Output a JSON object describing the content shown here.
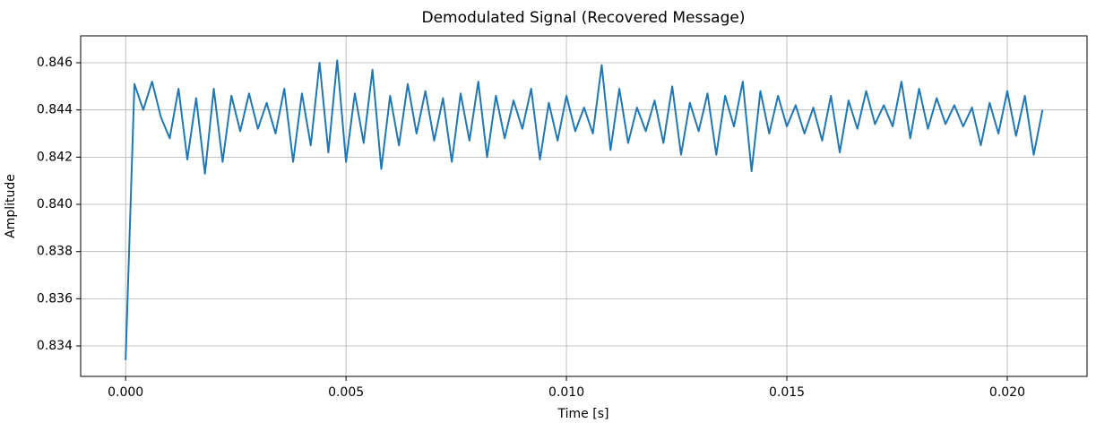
{
  "chart_data": {
    "type": "line",
    "title": "Demodulated Signal (Recovered Message)",
    "x_label": "Time [s]",
    "y_label": "Amplitude",
    "color": "#1f77b4",
    "grid": true,
    "xlim": [
      -0.00102,
      0.02181
    ],
    "ylim": [
      0.83271,
      0.84714
    ],
    "xticks": [
      {
        "value": 0,
        "label": "0.000"
      },
      {
        "value": 0.005,
        "label": "0.005"
      },
      {
        "value": 0.01,
        "label": "0.010"
      },
      {
        "value": 0.015,
        "label": "0.015"
      },
      {
        "value": 0.02,
        "label": "0.020"
      }
    ],
    "yticks": [
      0.834,
      0.836,
      0.838,
      {
        "value": 0.84,
        "label": "0.840"
      },
      0.842,
      0.844,
      0.846
    ],
    "x": [
      0,
      0.0002,
      0.0004,
      0.0006,
      0.0008,
      0.001,
      0.0012,
      0.0014,
      0.0016,
      0.0018,
      0.002,
      0.0022,
      0.0024,
      0.0026,
      0.0028,
      0.003,
      0.0032,
      0.0034,
      0.0036,
      0.0038,
      0.004,
      0.0042,
      0.0044,
      0.0046,
      0.0048,
      0.005,
      0.0052,
      0.0054,
      0.0056,
      0.0058,
      0.006,
      0.0062,
      0.0064,
      0.0066,
      0.0068,
      0.007,
      0.0072,
      0.0074,
      0.0076,
      0.0078,
      0.008,
      0.0082,
      0.0084,
      0.0086,
      0.0088,
      0.009,
      0.0092,
      0.0094,
      0.0096,
      0.0098,
      0.01,
      0.0102,
      0.0104,
      0.0106,
      0.0108,
      0.011,
      0.0112,
      0.0114,
      0.0116,
      0.0118,
      0.012,
      0.0122,
      0.0124,
      0.0126,
      0.0128,
      0.013,
      0.0132,
      0.0134,
      0.0136,
      0.0138,
      0.014,
      0.0142,
      0.0144,
      0.0146,
      0.0148,
      0.015,
      0.0152,
      0.0154,
      0.0156,
      0.0158,
      0.016,
      0.0162,
      0.0164,
      0.0166,
      0.0168,
      0.017,
      0.0172,
      0.0174,
      0.0176,
      0.0178,
      0.018,
      0.0182,
      0.0184,
      0.0186,
      0.0188,
      0.019,
      0.0192,
      0.0194,
      0.0196,
      0.0198,
      0.02,
      0.0202,
      0.0204,
      0.0206,
      0.0208
    ],
    "values": [
      0.8334,
      0.8451,
      0.844,
      0.8452,
      0.8437,
      0.8428,
      0.8449,
      0.8419,
      0.8445,
      0.8413,
      0.8449,
      0.8418,
      0.8446,
      0.8431,
      0.8447,
      0.8432,
      0.8443,
      0.843,
      0.8449,
      0.8418,
      0.8447,
      0.8425,
      0.846,
      0.8422,
      0.8461,
      0.8418,
      0.8447,
      0.8426,
      0.8457,
      0.8415,
      0.8446,
      0.8425,
      0.8451,
      0.843,
      0.8448,
      0.8427,
      0.8445,
      0.8418,
      0.8447,
      0.8427,
      0.8452,
      0.842,
      0.8446,
      0.8428,
      0.8444,
      0.8432,
      0.8449,
      0.8419,
      0.8443,
      0.8427,
      0.8446,
      0.8431,
      0.8441,
      0.843,
      0.8459,
      0.8423,
      0.8449,
      0.8426,
      0.8441,
      0.8431,
      0.8444,
      0.8426,
      0.845,
      0.8421,
      0.8443,
      0.8431,
      0.8447,
      0.8421,
      0.8446,
      0.8433,
      0.8452,
      0.8414,
      0.8448,
      0.843,
      0.8446,
      0.8433,
      0.8442,
      0.843,
      0.8441,
      0.8427,
      0.8446,
      0.8422,
      0.8444,
      0.8432,
      0.8448,
      0.8434,
      0.8442,
      0.8433,
      0.8452,
      0.8428,
      0.8449,
      0.8432,
      0.8445,
      0.8434,
      0.8442,
      0.8433,
      0.8441,
      0.8425,
      0.8443,
      0.843,
      0.8448,
      0.8429,
      0.8446,
      0.8421,
      0.844
    ]
  }
}
